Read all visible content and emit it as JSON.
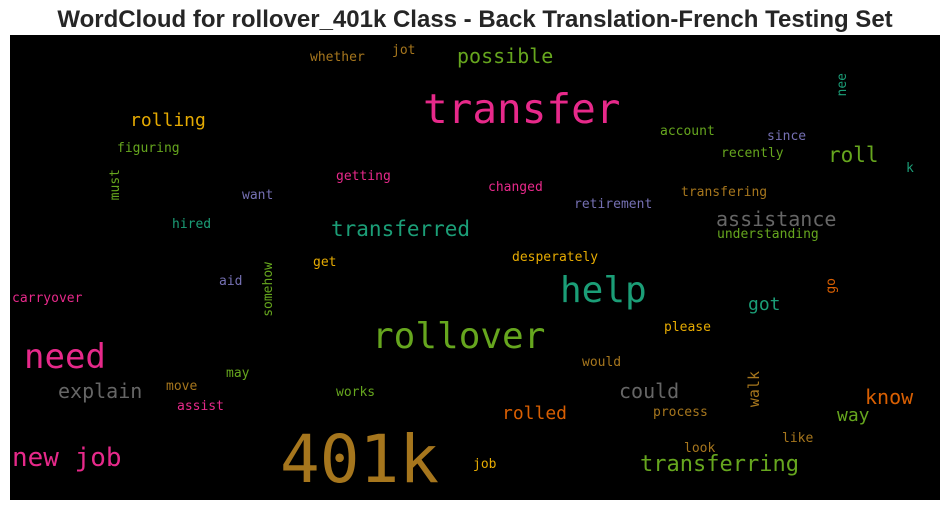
{
  "chart_data": {
    "type": "wordcloud",
    "title": "WordCloud for rollover_401k Class - Back Translation-French Testing Set",
    "background": "#000000",
    "words": [
      {
        "text": "401k",
        "weight": 1.0,
        "color": "#a6761d"
      },
      {
        "text": "transfer",
        "weight": 0.62,
        "color": "#e7298a"
      },
      {
        "text": "help",
        "weight": 0.55,
        "color": "#1b9e77"
      },
      {
        "text": "rollover",
        "weight": 0.54,
        "color": "#66a61e"
      },
      {
        "text": "need",
        "weight": 0.52,
        "color": "#e7298a"
      },
      {
        "text": "new job",
        "weight": 0.4,
        "color": "#e7298a"
      },
      {
        "text": "transferring",
        "weight": 0.34,
        "color": "#66a61e"
      },
      {
        "text": "transferred",
        "weight": 0.32,
        "color": "#1b9e77"
      },
      {
        "text": "roll",
        "weight": 0.32,
        "color": "#66a61e"
      },
      {
        "text": "possible",
        "weight": 0.3,
        "color": "#66a61e"
      },
      {
        "text": "could",
        "weight": 0.3,
        "color": "#666666"
      },
      {
        "text": "explain",
        "weight": 0.3,
        "color": "#666666"
      },
      {
        "text": "assistance",
        "weight": 0.3,
        "color": "#666666"
      },
      {
        "text": "know",
        "weight": 0.3,
        "color": "#d95f02"
      },
      {
        "text": "rolling",
        "weight": 0.28,
        "color": "#e6ab02"
      },
      {
        "text": "rolled",
        "weight": 0.28,
        "color": "#d95f02"
      },
      {
        "text": "got",
        "weight": 0.28,
        "color": "#1b9e77"
      },
      {
        "text": "way",
        "weight": 0.28,
        "color": "#66a61e"
      },
      {
        "text": "walk",
        "weight": 0.22,
        "color": "#a6761d"
      },
      {
        "text": "go",
        "weight": 0.2,
        "color": "#d95f02"
      },
      {
        "text": "want",
        "weight": 0.2,
        "color": "#7570b3"
      },
      {
        "text": "desperately",
        "weight": 0.15,
        "color": "#e6ab02"
      },
      {
        "text": "transfering",
        "weight": 0.14,
        "color": "#a6761d"
      },
      {
        "text": "understanding",
        "weight": 0.14,
        "color": "#66a61e"
      },
      {
        "text": "retirement",
        "weight": 0.14,
        "color": "#7570b3"
      },
      {
        "text": "changed",
        "weight": 0.14,
        "color": "#e7298a"
      },
      {
        "text": "getting",
        "weight": 0.14,
        "color": "#e7298a"
      },
      {
        "text": "account",
        "weight": 0.14,
        "color": "#66a61e"
      },
      {
        "text": "recently",
        "weight": 0.14,
        "color": "#66a61e"
      },
      {
        "text": "since",
        "weight": 0.14,
        "color": "#7570b3"
      },
      {
        "text": "figuring",
        "weight": 0.14,
        "color": "#66a61e"
      },
      {
        "text": "hired",
        "weight": 0.14,
        "color": "#1b9e77"
      },
      {
        "text": "carryover",
        "weight": 0.14,
        "color": "#e7298a"
      },
      {
        "text": "aid",
        "weight": 0.14,
        "color": "#7570b3"
      },
      {
        "text": "get",
        "weight": 0.14,
        "color": "#e6ab02"
      },
      {
        "text": "somehow",
        "weight": 0.14,
        "color": "#66a61e"
      },
      {
        "text": "please",
        "weight": 0.14,
        "color": "#e6ab02"
      },
      {
        "text": "would",
        "weight": 0.14,
        "color": "#a6761d"
      },
      {
        "text": "may",
        "weight": 0.14,
        "color": "#66a61e"
      },
      {
        "text": "move",
        "weight": 0.14,
        "color": "#a6761d"
      },
      {
        "text": "assist",
        "weight": 0.14,
        "color": "#e7298a"
      },
      {
        "text": "works",
        "weight": 0.14,
        "color": "#66a61e"
      },
      {
        "text": "process",
        "weight": 0.14,
        "color": "#a6761d"
      },
      {
        "text": "look",
        "weight": 0.14,
        "color": "#a6761d"
      },
      {
        "text": "like",
        "weight": 0.14,
        "color": "#a6761d"
      },
      {
        "text": "job",
        "weight": 0.14,
        "color": "#e6ab02"
      },
      {
        "text": "whether",
        "weight": 0.14,
        "color": "#a6761d"
      },
      {
        "text": "jot",
        "weight": 0.14,
        "color": "#a6761d"
      },
      {
        "text": "must",
        "weight": 0.14,
        "color": "#66a61e"
      },
      {
        "text": "nee",
        "weight": 0.14,
        "color": "#1b9e77"
      },
      {
        "text": "k",
        "weight": 0.14,
        "color": "#1b9e77"
      }
    ]
  }
}
